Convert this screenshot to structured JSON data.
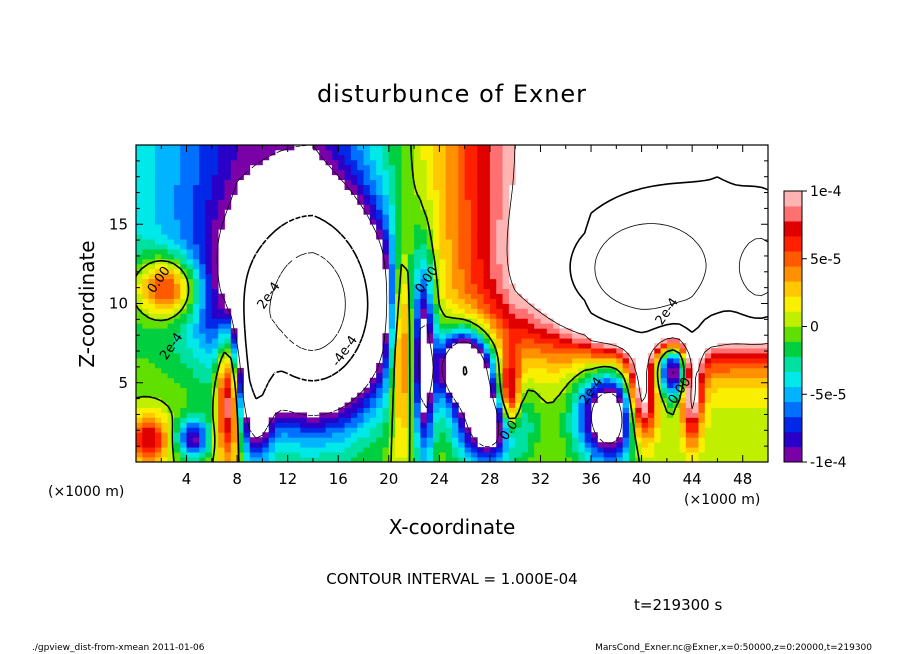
{
  "chart_data": {
    "type": "heatmap",
    "title": "disturbunce of Exner",
    "xlabel": "X-coordinate",
    "ylabel": "Z-coordinate",
    "x_unit": "(×1000 m)",
    "z_unit": "(×1000 m)",
    "xlim": [
      0,
      50
    ],
    "ylim": [
      0,
      20
    ],
    "x_ticks": [
      4,
      8,
      12,
      16,
      20,
      24,
      28,
      32,
      36,
      40,
      44,
      48
    ],
    "y_ticks": [
      5,
      10,
      15
    ],
    "colorbar": {
      "range": [
        -0.0001,
        0.0001
      ],
      "tick_values": [
        0.0001,
        5e-05,
        0,
        -5e-05,
        -0.0001
      ],
      "tick_labels": [
        "1e-4",
        "5e-5",
        "0",
        "-5e-5",
        "-1e-4"
      ],
      "colors": [
        "#7a00a8",
        "#2a00c8",
        "#0028e6",
        "#0070ff",
        "#00b4ff",
        "#00e8e8",
        "#00e0a0",
        "#00d040",
        "#60e000",
        "#c0f000",
        "#f8f000",
        "#ffc800",
        "#ff9000",
        "#ff5a00",
        "#ff2000",
        "#e00000",
        "#ff7070",
        "#ffb4b4"
      ]
    },
    "contour_labels": [
      {
        "text": "0.00",
        "x": 1.8,
        "z": 11.5
      },
      {
        "text": "0.00",
        "x": 23.0,
        "z": 11.5
      },
      {
        "text": "2e-4",
        "x": 10.5,
        "z": 10.5
      },
      {
        "text": "-4e-4",
        "x": 16.5,
        "z": 7.0
      },
      {
        "text": "2e-4",
        "x": 2.8,
        "z": 7.3
      },
      {
        "text": "0.0",
        "x": 29.5,
        "z": 2.0
      },
      {
        "text": "2e-4",
        "x": 36.0,
        "z": 4.5
      },
      {
        "text": "2e-4",
        "x": 42.0,
        "z": 9.5
      },
      {
        "text": "0.00",
        "x": 43.0,
        "z": 4.5
      }
    ],
    "contour_interval_text": "CONTOUR INTERVAL = 1.000E-04",
    "time_text": "t=219300 s"
  },
  "footer": {
    "left": "./gpview_dist-from-xmean  2011-01-06",
    "right": "MarsCond_Exner.nc@Exner,x=0:50000,z=0:20000,t=219300"
  }
}
